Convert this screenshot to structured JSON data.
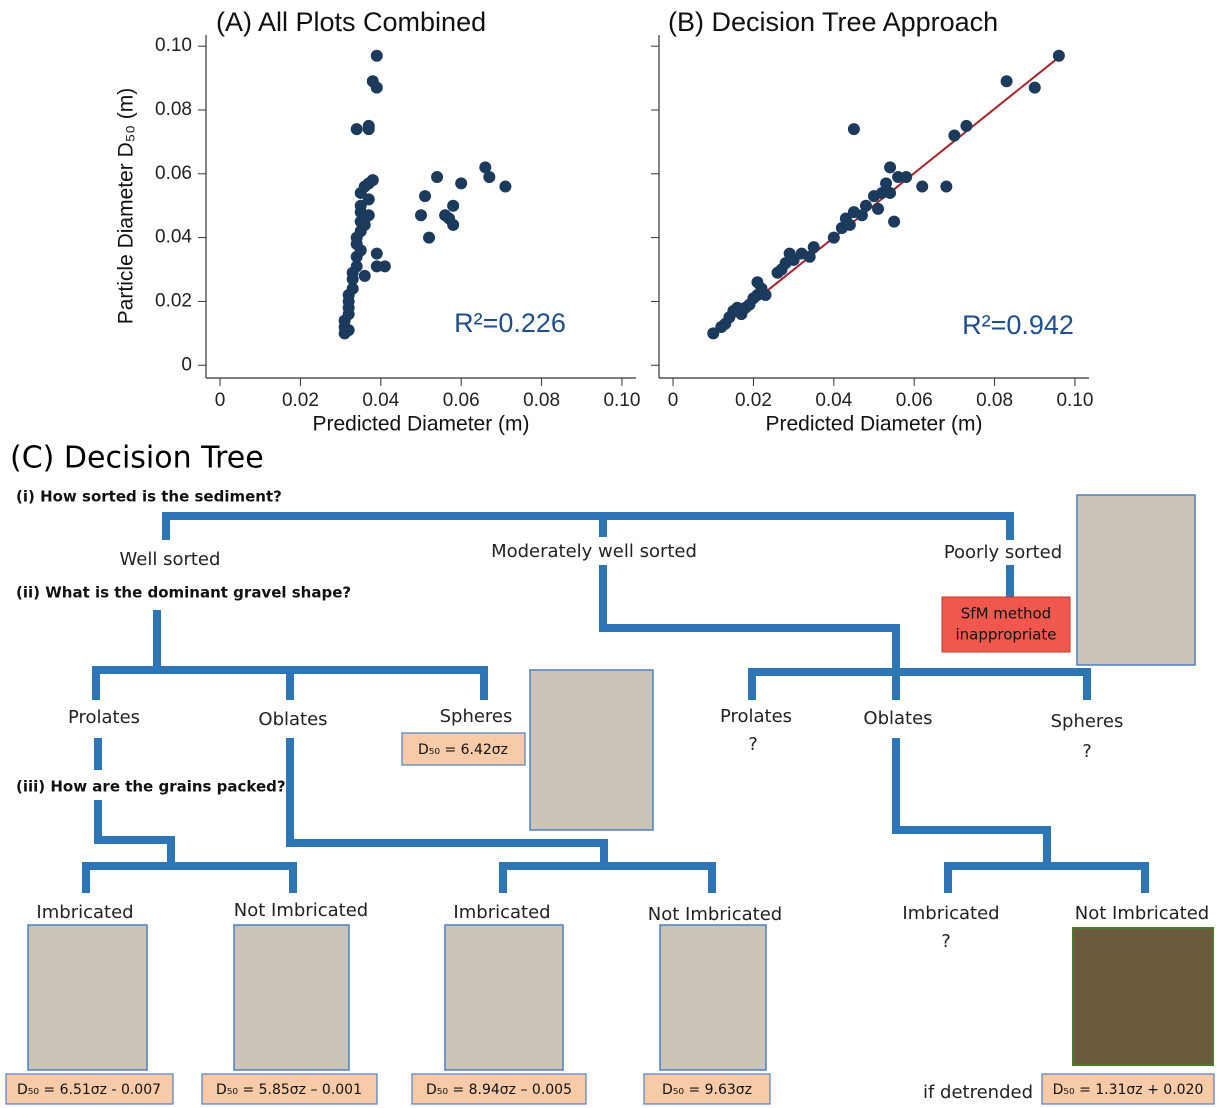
{
  "chart_data": [
    {
      "type": "scatter",
      "title": "(A) All Plots Combined",
      "xlabel": "Predicted Diameter (m)",
      "ylabel": "Particle Diameter D₅₀ (m)",
      "annotation": "R²=0.226",
      "color": "#1b3a5c",
      "x": [
        0.031,
        0.031,
        0.031,
        0.032,
        0.032,
        0.032,
        0.032,
        0.032,
        0.033,
        0.033,
        0.033,
        0.034,
        0.034,
        0.034,
        0.034,
        0.035,
        0.035,
        0.035,
        0.035,
        0.035,
        0.036,
        0.036,
        0.036,
        0.037,
        0.037,
        0.037,
        0.037,
        0.037,
        0.034,
        0.036,
        0.038,
        0.038,
        0.039,
        0.039,
        0.039,
        0.039,
        0.041,
        0.05,
        0.051,
        0.052,
        0.054,
        0.056,
        0.057,
        0.058,
        0.058,
        0.06,
        0.066,
        0.067,
        0.071,
        0.035
      ],
      "values": [
        0.01,
        0.012,
        0.014,
        0.011,
        0.016,
        0.018,
        0.02,
        0.022,
        0.024,
        0.027,
        0.029,
        0.031,
        0.034,
        0.038,
        0.04,
        0.036,
        0.042,
        0.045,
        0.048,
        0.054,
        0.056,
        0.046,
        0.044,
        0.047,
        0.052,
        0.057,
        0.075,
        0.074,
        0.074,
        0.028,
        0.058,
        0.089,
        0.087,
        0.097,
        0.035,
        0.031,
        0.031,
        0.047,
        0.053,
        0.04,
        0.059,
        0.047,
        0.046,
        0.05,
        0.044,
        0.057,
        0.062,
        0.059,
        0.056,
        0.05
      ],
      "xlim": [
        -0.0035,
        0.1035
      ],
      "ylim": [
        -0.004,
        0.1035
      ],
      "xticks": [
        0,
        0.02,
        0.04,
        0.06,
        0.08,
        {
          "value": 0.1,
          "label": "0.10"
        }
      ],
      "yticks": [
        0,
        0.02,
        0.04,
        0.06,
        0.08,
        {
          "value": 0.1,
          "label": "0.10"
        }
      ],
      "show_ytick_labels": true
    },
    {
      "type": "scatter",
      "title": "(B) Decision Tree Approach",
      "xlabel": "Predicted Diameter (m)",
      "annotation": "R²=0.942",
      "color": "#1b3a5c",
      "x": [
        0.01,
        0.012,
        0.013,
        0.014,
        0.015,
        0.016,
        0.017,
        0.018,
        0.019,
        0.02,
        0.021,
        0.021,
        0.022,
        0.023,
        0.026,
        0.027,
        0.028,
        0.029,
        0.03,
        0.032,
        0.034,
        0.035,
        0.04,
        0.042,
        0.043,
        0.044,
        0.045,
        0.045,
        0.047,
        0.048,
        0.05,
        0.051,
        0.052,
        0.053,
        0.054,
        0.054,
        0.055,
        0.056,
        0.058,
        0.062,
        0.068,
        0.07,
        0.073,
        0.083,
        0.09,
        0.096
      ],
      "values": [
        0.01,
        0.012,
        0.013,
        0.015,
        0.017,
        0.018,
        0.016,
        0.018,
        0.019,
        0.021,
        0.022,
        0.026,
        0.024,
        0.022,
        0.029,
        0.03,
        0.032,
        0.035,
        0.033,
        0.035,
        0.034,
        0.037,
        0.04,
        0.043,
        0.046,
        0.044,
        0.048,
        0.074,
        0.047,
        0.05,
        0.053,
        0.049,
        0.054,
        0.057,
        0.062,
        0.054,
        0.045,
        0.059,
        0.059,
        0.056,
        0.056,
        0.072,
        0.075,
        0.089,
        0.087,
        0.097
      ],
      "fit_line": {
        "x": [
          0.01,
          0.096
        ],
        "values": [
          0.0098,
          0.0965
        ],
        "color": "#a8242a"
      },
      "xlim": [
        -0.0035,
        0.1035
      ],
      "ylim": [
        -0.004,
        0.1035
      ],
      "xticks": [
        0,
        0.02,
        0.04,
        0.06,
        0.08,
        {
          "value": 0.1,
          "label": "0.10"
        }
      ],
      "yticks": [
        0,
        0.02,
        0.04,
        0.06,
        0.08,
        0.1
      ],
      "show_ytick_labels": false
    }
  ],
  "decision_tree": {
    "title": "(C) Decision Tree",
    "questions": [
      "(i) How sorted is the sediment?",
      "(ii) What is the dominant gravel shape?",
      "(iii) How are the grains packed?"
    ],
    "sorting": [
      "Well sorted",
      "Moderately well sorted",
      "Poorly sorted"
    ],
    "poorly_sorted_result": [
      "SfM method",
      "inappropriate"
    ],
    "shapes_well_sorted": [
      "Prolates",
      "Oblates",
      "Spheres"
    ],
    "spheres_formula": "D₅₀ =  6.42σz",
    "shapes_moderately_sorted": [
      "Prolates",
      "Oblates",
      "Spheres"
    ],
    "unknown": "?",
    "packing": [
      {
        "label": "Imbricated",
        "formula": "D₅₀ = 6.51σz - 0.007"
      },
      {
        "label": "Not Imbricated",
        "formula": "D₅₀ = 5.85σz – 0.001"
      },
      {
        "label": "Imbricated",
        "formula": "D₅₀ = 8.94σz – 0.005"
      },
      {
        "label": "Not Imbricated",
        "formula": "D₅₀ = 9.63σz"
      },
      {
        "label": "Imbricated"
      },
      {
        "label": "Not Imbricated",
        "formula": "D₅₀ = 1.31σz + 0.020"
      }
    ],
    "detrended_note": "if detrended"
  }
}
